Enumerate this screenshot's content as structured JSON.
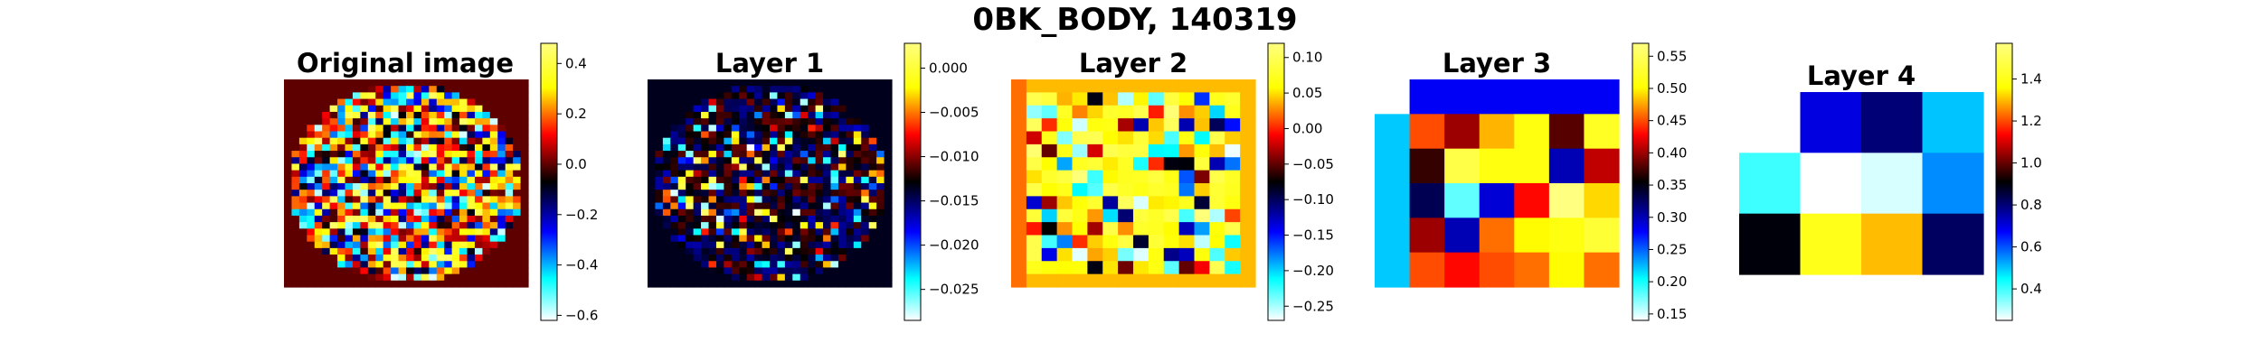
{
  "figure": {
    "title": "0BK_BODY, 140319"
  },
  "chart_data": [
    {
      "type": "heatmap",
      "title": "Original image",
      "colormap": "flag-like",
      "grid": "none",
      "axes": "off",
      "shape": [
        32,
        32
      ],
      "colorbar": {
        "range": [
          -0.62,
          0.48
        ],
        "ticks": [
          "0.4",
          "0.2",
          "0.0",
          "−0.2",
          "−0.4",
          "−0.6"
        ],
        "tick_values": [
          0.4,
          0.2,
          0.0,
          -0.2,
          -0.4,
          -0.6
        ]
      },
      "background_value": 0.0,
      "values": null
    },
    {
      "type": "heatmap",
      "title": "Layer 1",
      "colormap": "flag-like",
      "grid": "none",
      "axes": "off",
      "shape": [
        32,
        32
      ],
      "colorbar": {
        "range": [
          -0.0285,
          0.0028
        ],
        "ticks": [
          "0.000",
          "−0.005",
          "−0.010",
          "−0.015",
          "−0.020",
          "−0.025"
        ],
        "tick_values": [
          0.0,
          -0.005,
          -0.01,
          -0.015,
          -0.02,
          -0.025
        ]
      },
      "background_value": -0.0135,
      "values": null
    },
    {
      "type": "heatmap",
      "title": "Layer 2",
      "colormap": "flag-like",
      "grid": "none",
      "axes": "off",
      "shape": [
        16,
        16
      ],
      "colorbar": {
        "range": [
          -0.27,
          0.12
        ],
        "ticks": [
          "0.10",
          "0.05",
          "0.00",
          "−0.05",
          "−0.10",
          "−0.15",
          "−0.20",
          "−0.25"
        ],
        "tick_values": [
          0.1,
          0.05,
          0.0,
          -0.05,
          -0.1,
          -0.15,
          -0.2,
          -0.25
        ]
      },
      "background_value": 0.04,
      "values": null
    },
    {
      "type": "heatmap",
      "title": "Layer 3",
      "colormap": "flag-like",
      "grid": "none",
      "axes": "off",
      "shape": [
        6,
        7
      ],
      "colorbar": {
        "range": [
          0.14,
          0.57
        ],
        "ticks": [
          "0.55",
          "0.50",
          "0.45",
          "0.40",
          "0.35",
          "0.30",
          "0.25",
          "0.20",
          "0.15"
        ],
        "tick_values": [
          0.55,
          0.5,
          0.45,
          0.4,
          0.35,
          0.3,
          0.25,
          0.2,
          0.15
        ]
      },
      "values": [
        [
          null,
          0.28,
          0.28,
          0.28,
          0.28,
          0.28,
          0.28
        ],
        [
          0.22,
          0.45,
          0.4,
          0.48,
          0.51,
          0.38,
          0.52
        ],
        [
          0.22,
          0.37,
          0.54,
          0.51,
          0.51,
          0.3,
          0.41
        ],
        [
          0.22,
          0.33,
          0.18,
          0.29,
          0.43,
          0.57,
          0.49
        ],
        [
          0.22,
          0.4,
          0.3,
          0.46,
          0.5,
          0.51,
          0.53
        ],
        [
          0.22,
          0.45,
          0.43,
          0.45,
          0.46,
          0.5,
          0.46
        ]
      ]
    },
    {
      "type": "heatmap",
      "title": "Layer 4",
      "colormap": "flag-like",
      "grid": "none",
      "axes": "off",
      "shape": [
        3,
        4
      ],
      "colorbar": {
        "range": [
          0.25,
          1.57
        ],
        "ticks": [
          "1.4",
          "1.2",
          "1.0",
          "0.8",
          "0.6",
          "0.4"
        ],
        "tick_values": [
          1.4,
          1.2,
          1.0,
          0.8,
          0.6,
          0.4
        ]
      },
      "values": [
        [
          null,
          0.7,
          0.8,
          0.5
        ],
        [
          0.4,
          0.25,
          0.28,
          0.55
        ],
        [
          0.9,
          1.4,
          1.3,
          0.82
        ]
      ]
    }
  ]
}
